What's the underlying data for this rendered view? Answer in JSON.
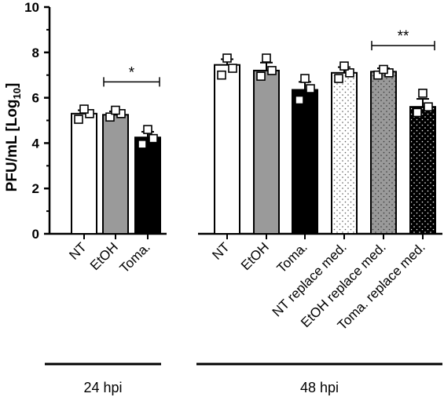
{
  "chart_data": {
    "type": "bar",
    "ylabel_main": "PFU/mL [Log",
    "ylabel_sub": "10",
    "ylabel_close": "]",
    "ylim": [
      0,
      10
    ],
    "yticks": [
      0,
      2,
      4,
      6,
      8,
      10
    ],
    "categories": [
      {
        "label": "NT",
        "value": 5.3,
        "sem": 0.15,
        "fill": "white",
        "points": [
          5.05,
          5.3,
          5.5
        ]
      },
      {
        "label": "EtOH",
        "value": 5.25,
        "sem": 0.15,
        "fill": "gray",
        "points": [
          5.15,
          5.3,
          5.45
        ]
      },
      {
        "label": "Toma.",
        "value": 4.25,
        "sem": 0.25,
        "fill": "black",
        "points": [
          3.95,
          4.2,
          4.6
        ]
      },
      {
        "label": "NT",
        "value": 7.45,
        "sem": 0.25,
        "fill": "white",
        "points": [
          7.0,
          7.3,
          7.75
        ]
      },
      {
        "label": "EtOH",
        "value": 7.2,
        "sem": 0.35,
        "fill": "gray",
        "points": [
          6.95,
          7.2,
          7.75
        ]
      },
      {
        "label": "Toma.",
        "value": 6.35,
        "sem": 0.35,
        "fill": "black",
        "points": [
          5.9,
          6.4,
          6.85
        ]
      },
      {
        "label": "NT replace med.",
        "value": 7.1,
        "sem": 0.25,
        "fill": "white-dotted",
        "points": [
          6.85,
          7.1,
          7.4
        ]
      },
      {
        "label": "EtOH replace med.",
        "value": 7.15,
        "sem": 0.15,
        "fill": "gray-dotted",
        "points": [
          7.0,
          7.1,
          7.25
        ]
      },
      {
        "label": "Toma. replace med.",
        "value": 5.6,
        "sem": 0.35,
        "fill": "black-dotted",
        "points": [
          5.35,
          5.6,
          6.2
        ]
      }
    ],
    "groups": [
      {
        "label": "24 hpi",
        "from": 0,
        "to": 2
      },
      {
        "label": "48 hpi",
        "from": 3,
        "to": 8
      }
    ],
    "significance": [
      {
        "from": 1,
        "to": 2,
        "label": "*",
        "y": 6.7
      },
      {
        "from": 7,
        "to": 8,
        "label": "**",
        "y": 8.3
      }
    ],
    "colors": {
      "gray": "#9a9a9a",
      "black": "#000000",
      "white": "#ffffff"
    }
  }
}
